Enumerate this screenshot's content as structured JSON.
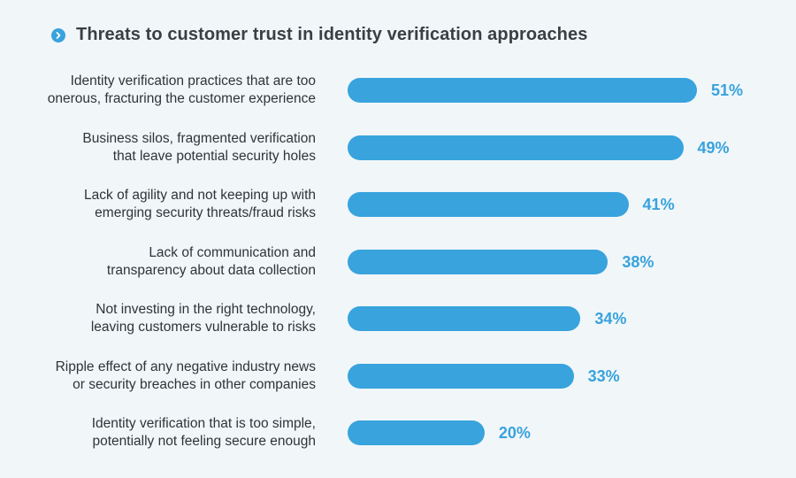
{
  "title": "Threats to customer trust in identity verification approaches",
  "icon": "chevron-right-icon",
  "colors": {
    "background": "#f1f6f9",
    "bar": "#38a3dd",
    "title": "#3a3f44",
    "label": "#2f3438"
  },
  "chart_data": {
    "type": "bar",
    "orientation": "horizontal",
    "title": "Threats to customer trust in identity verification approaches",
    "categories": [
      [
        "Identity verification practices that are too",
        "onerous, fracturing the customer experience"
      ],
      [
        "Business silos, fragmented verification",
        "that leave potential security holes"
      ],
      [
        "Lack of agility and not keeping up with",
        "emerging security threats/fraud risks"
      ],
      [
        "Lack of communication and",
        "transparency about data collection"
      ],
      [
        "Not investing in the right technology,",
        "leaving customers vulnerable to risks"
      ],
      [
        "Ripple effect of any negative industry news",
        "or security breaches in other companies"
      ],
      [
        "Identity verification that is too simple,",
        "potentially not feeling secure enough"
      ]
    ],
    "values": [
      51,
      49,
      41,
      38,
      34,
      33,
      20
    ],
    "value_labels": [
      "51%",
      "49%",
      "41%",
      "38%",
      "34%",
      "33%",
      "20%"
    ],
    "unit": "%",
    "xlim": [
      0,
      51
    ],
    "grid": false,
    "legend": "none"
  }
}
